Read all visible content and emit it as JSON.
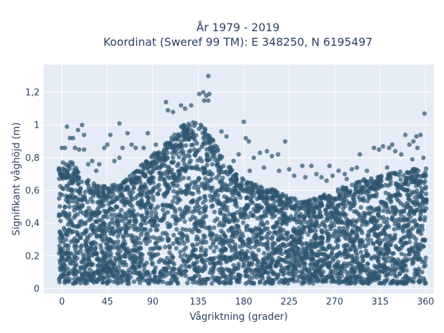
{
  "chart_data": {
    "type": "scatter",
    "title": "År 1979 - 2019",
    "subtitle": "Koordinat (Sweref 99 TM): E 348250, N 6195497",
    "xlabel": "Vågriktning (grader)",
    "ylabel": "Signifikant våghöjd (m)",
    "xlim": [
      -18,
      368
    ],
    "ylim": [
      -0.03,
      1.37
    ],
    "xticks": [
      0,
      45,
      90,
      135,
      180,
      225,
      270,
      315,
      360
    ],
    "xtick_labels": [
      "0",
      "45",
      "90",
      "135",
      "180",
      "225",
      "270",
      "315",
      "360"
    ],
    "yticks": [
      0,
      0.2,
      0.4,
      0.6,
      0.8,
      1,
      1.2
    ],
    "ytick_labels": [
      "0",
      "0,2",
      "0,4",
      "0,6",
      "0,8",
      "1",
      "1,2"
    ],
    "grid": true,
    "series": [
      {
        "color": "#2d5570",
        "opacity": 0.7,
        "density_envelope": {
          "x_range": [
            -3,
            361
          ],
          "y_min": 0.03,
          "upper_bound": [
            {
              "x": 0,
              "y": 0.7
            },
            {
              "x": 10,
              "y": 0.72
            },
            {
              "x": 20,
              "y": 0.64
            },
            {
              "x": 30,
              "y": 0.6
            },
            {
              "x": 45,
              "y": 0.58
            },
            {
              "x": 60,
              "y": 0.6
            },
            {
              "x": 75,
              "y": 0.68
            },
            {
              "x": 90,
              "y": 0.76
            },
            {
              "x": 105,
              "y": 0.84
            },
            {
              "x": 120,
              "y": 0.93
            },
            {
              "x": 135,
              "y": 0.96
            },
            {
              "x": 150,
              "y": 0.84
            },
            {
              "x": 165,
              "y": 0.7
            },
            {
              "x": 180,
              "y": 0.62
            },
            {
              "x": 195,
              "y": 0.58
            },
            {
              "x": 210,
              "y": 0.56
            },
            {
              "x": 225,
              "y": 0.52
            },
            {
              "x": 240,
              "y": 0.5
            },
            {
              "x": 255,
              "y": 0.52
            },
            {
              "x": 270,
              "y": 0.56
            },
            {
              "x": 285,
              "y": 0.6
            },
            {
              "x": 300,
              "y": 0.62
            },
            {
              "x": 315,
              "y": 0.64
            },
            {
              "x": 330,
              "y": 0.66
            },
            {
              "x": 345,
              "y": 0.68
            },
            {
              "x": 360,
              "y": 0.68
            }
          ]
        },
        "outliers": [
          {
            "x": 145,
            "y": 1.3
          },
          {
            "x": 136,
            "y": 1.19
          },
          {
            "x": 140,
            "y": 1.2
          },
          {
            "x": 143,
            "y": 1.18
          },
          {
            "x": 146,
            "y": 1.19
          },
          {
            "x": 141,
            "y": 1.15
          },
          {
            "x": 145,
            "y": 1.15
          },
          {
            "x": 118,
            "y": 1.12
          },
          {
            "x": 122,
            "y": 1.1
          },
          {
            "x": 128,
            "y": 1.12
          },
          {
            "x": 103,
            "y": 1.14
          },
          {
            "x": 105,
            "y": 1.09
          },
          {
            "x": 110,
            "y": 1.08
          },
          {
            "x": 359,
            "y": 1.07
          },
          {
            "x": 57,
            "y": 1.01
          },
          {
            "x": 180,
            "y": 1.02
          },
          {
            "x": 20,
            "y": 1.0
          },
          {
            "x": 5,
            "y": 0.99
          },
          {
            "x": 16,
            "y": 0.97
          },
          {
            "x": 22,
            "y": 0.94
          },
          {
            "x": 48,
            "y": 0.94
          },
          {
            "x": 65,
            "y": 0.95
          },
          {
            "x": 85,
            "y": 0.95
          },
          {
            "x": 158,
            "y": 0.96
          },
          {
            "x": 163,
            "y": 0.93
          },
          {
            "x": 182,
            "y": 0.92
          },
          {
            "x": 185,
            "y": 0.9
          },
          {
            "x": 221,
            "y": 0.9
          },
          {
            "x": 340,
            "y": 0.94
          },
          {
            "x": 351,
            "y": 0.93
          },
          {
            "x": 355,
            "y": 0.94
          },
          {
            "x": 348,
            "y": 0.9
          },
          {
            "x": 344,
            "y": 0.88
          },
          {
            "x": 352,
            "y": 0.86
          },
          {
            "x": 8,
            "y": 0.92
          },
          {
            "x": 11,
            "y": 0.92
          },
          {
            "x": 3,
            "y": 0.86
          },
          {
            "x": 0,
            "y": 0.86
          },
          {
            "x": 13,
            "y": 0.86
          },
          {
            "x": 17,
            "y": 0.85
          },
          {
            "x": 22,
            "y": 0.85
          },
          {
            "x": 42,
            "y": 0.86
          },
          {
            "x": 45,
            "y": 0.88
          },
          {
            "x": 60,
            "y": 0.86
          },
          {
            "x": 69,
            "y": 0.88
          },
          {
            "x": 73,
            "y": 0.86
          },
          {
            "x": 81,
            "y": 0.86
          },
          {
            "x": 93,
            "y": 0.88
          },
          {
            "x": 203,
            "y": 0.84
          },
          {
            "x": 208,
            "y": 0.81
          },
          {
            "x": 214,
            "y": 0.82
          },
          {
            "x": 196,
            "y": 0.83
          },
          {
            "x": 190,
            "y": 0.8
          },
          {
            "x": 327,
            "y": 0.88
          },
          {
            "x": 318,
            "y": 0.87
          },
          {
            "x": 324,
            "y": 0.86
          },
          {
            "x": 309,
            "y": 0.86
          },
          {
            "x": 314,
            "y": 0.85
          },
          {
            "x": 295,
            "y": 0.82
          },
          {
            "x": 330,
            "y": 0.84
          },
          {
            "x": 336,
            "y": 0.82
          },
          {
            "x": 358,
            "y": 0.8
          },
          {
            "x": 347,
            "y": 0.79
          },
          {
            "x": 238,
            "y": 0.75
          },
          {
            "x": 247,
            "y": 0.75
          },
          {
            "x": 265,
            "y": 0.75
          },
          {
            "x": 287,
            "y": 0.73
          },
          {
            "x": 292,
            "y": 0.74
          },
          {
            "x": 302,
            "y": 0.72
          },
          {
            "x": 322,
            "y": 0.74
          },
          {
            "x": 274,
            "y": 0.72
          },
          {
            "x": 225,
            "y": 0.73
          },
          {
            "x": 215,
            "y": 0.72
          },
          {
            "x": 200,
            "y": 0.74
          },
          {
            "x": 186,
            "y": 0.72
          },
          {
            "x": 170,
            "y": 0.78
          },
          {
            "x": 175,
            "y": 0.82
          },
          {
            "x": 37,
            "y": 0.76
          },
          {
            "x": 52,
            "y": 0.78
          },
          {
            "x": 30,
            "y": 0.78
          },
          {
            "x": 26,
            "y": 0.76
          },
          {
            "x": 34,
            "y": 0.72
          },
          {
            "x": 57,
            "y": 0.8
          },
          {
            "x": 1,
            "y": 0.77
          },
          {
            "x": 252,
            "y": 0.7
          },
          {
            "x": 257,
            "y": 0.68
          },
          {
            "x": 268,
            "y": 0.69
          },
          {
            "x": 280,
            "y": 0.7
          },
          {
            "x": 241,
            "y": 0.68
          },
          {
            "x": 230,
            "y": 0.69
          },
          {
            "x": 262,
            "y": 0.66
          },
          {
            "x": 282,
            "y": 0.67
          }
        ]
      }
    ]
  }
}
